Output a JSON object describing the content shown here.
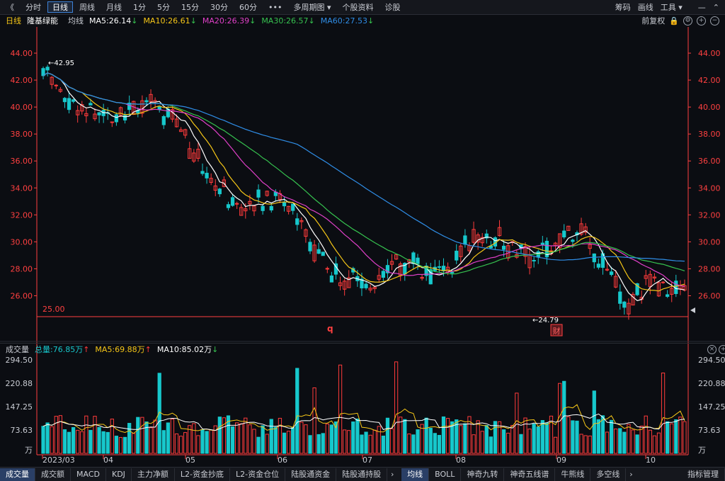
{
  "toolbar": {
    "back": "《",
    "periods": [
      "分时",
      "日线",
      "周线",
      "月线",
      "1分",
      "5分",
      "15分",
      "30分",
      "60分",
      "•••",
      "多周期图 ▾",
      "个股资料",
      "诊股"
    ],
    "active_index": 1,
    "right": [
      "筹码",
      "画线",
      "工具 ▾"
    ]
  },
  "info": {
    "period": "日线",
    "name": "隆基绿能",
    "ma_label": "均线",
    "ma5": "MA5:26.14",
    "ma10": "MA10:26.61",
    "ma20": "MA20:26.39",
    "ma30": "MA30:26.57",
    "ma60": "MA60:27.53",
    "adjust": "前复权"
  },
  "colors": {
    "up": "#ff3b3b",
    "down": "#17c8cc",
    "ma5": "#ffffff",
    "ma10": "#f5c617",
    "ma20": "#e040c8",
    "ma30": "#36c24f",
    "ma60": "#2f8de6",
    "axis": "#ff4040"
  },
  "price_axis": {
    "ticks": [
      "44.00",
      "42.00",
      "40.00",
      "38.00",
      "36.00",
      "34.00",
      "32.00",
      "30.00",
      "28.00",
      "26.00"
    ],
    "ticks_right": [
      "44.00",
      "42.00",
      "40.00",
      "38.00",
      "36.00",
      "34.00",
      "32.00",
      "30.00",
      "28.00",
      "26.00"
    ]
  },
  "annotations": {
    "high": "←42.95",
    "low": "←24.79",
    "line_level": "25.00",
    "marker_q": "q",
    "marker_cai": "财"
  },
  "volume": {
    "title": "成交量",
    "total": "总量:76.85万",
    "ma5": "MA5:69.88万",
    "ma10": "MA10:85.02万",
    "ticks": [
      "294.50",
      "220.88",
      "147.25",
      "73.63",
      "万"
    ],
    "ticks_right": [
      "294.50",
      "220.88",
      "147.25",
      "73.63",
      "万"
    ]
  },
  "date_axis": [
    "2023/03",
    "04",
    "05",
    "06",
    "07",
    "08",
    "09",
    "10"
  ],
  "bottom_tabs": [
    "成交量",
    "成交额",
    "MACD",
    "KDJ",
    "主力净额",
    "L2-资金抄底",
    "L2-资金仓位",
    "陆股通资金",
    "陆股通持股"
  ],
  "indicator_tabs": [
    "均线",
    "BOLL",
    "神奇九转",
    "神奇五线谱",
    "牛熊线",
    "多空线"
  ],
  "manage": "指标管理",
  "chart_data": {
    "type": "candlestick",
    "ylim": [
      24.79,
      42.95
    ],
    "ma_last": {
      "ma5": 26.14,
      "ma10": 26.61,
      "ma20": 26.39,
      "ma30": 26.57,
      "ma60": 27.53
    },
    "volume_ylim": [
      0,
      294.5
    ],
    "volume_last": 76.85,
    "volume_ma5": 69.88,
    "volume_ma10": 85.02
  }
}
